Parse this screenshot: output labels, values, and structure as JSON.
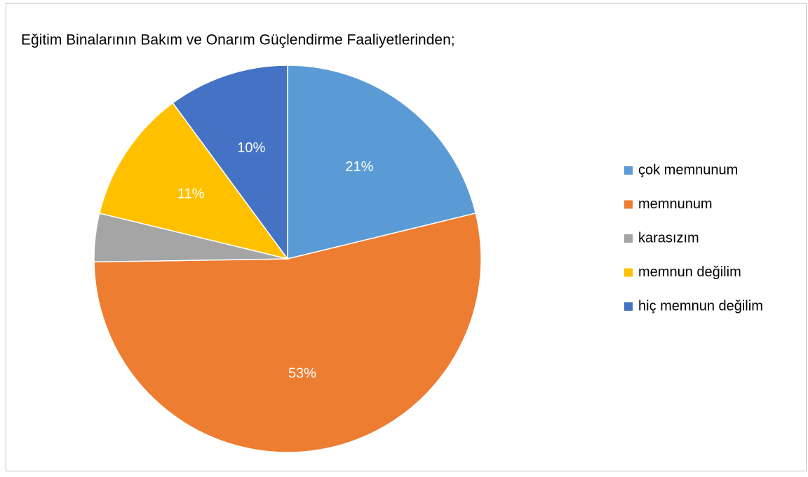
{
  "chart_data": {
    "type": "pie",
    "title": "Eğitim Binalarının Bakım ve Onarım Güçlendirme Faaliyetlerinden;",
    "categories": [
      "çok memnunum",
      "memnunum",
      "karasızım",
      "memnun değilim",
      "hiç memnun değilim"
    ],
    "values": [
      21,
      53,
      4,
      11,
      10
    ],
    "value_labels": [
      "21%",
      "53%",
      null,
      "11%",
      "10%"
    ],
    "colors": [
      "#5b9bd5",
      "#ed7d31",
      "#a5a5a5",
      "#ffc000",
      "#4472c4"
    ],
    "legend": "right"
  }
}
